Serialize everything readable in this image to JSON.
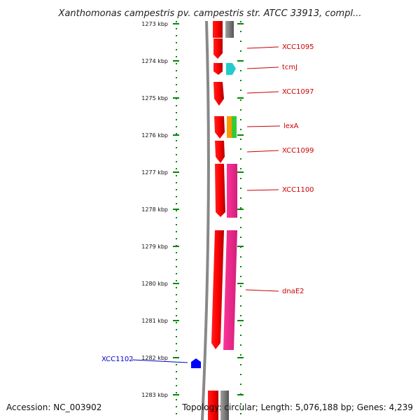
{
  "title": "Xanthomonas campestris pv. campestris str. ATCC 33913, compl...",
  "footer": {
    "accession": "Accession: NC_003902",
    "topology": "Topology: circular; Length: 5,076,188 bp; Genes: 4,239"
  },
  "axis": {
    "unit": "kbp",
    "ticks": [
      "1273 kbp",
      "1274 kbp",
      "1275 kbp",
      "1276 kbp",
      "1277 kbp",
      "1278 kbp",
      "1279 kbp",
      "1280 kbp",
      "1281 kbp",
      "1282 kbp",
      "1283 kbp"
    ]
  },
  "colors": {
    "forward_gene": "#ff0000",
    "label_red": "#cc0000",
    "label_blue": "#0000cc",
    "tick_green": "#008800",
    "backbone": "#888888",
    "cyan": "#22cccc",
    "orange": "#ff9900",
    "green": "#33cc33",
    "magenta": "#ff3399",
    "gray": "#888888",
    "blue": "#0000ff"
  },
  "features": [
    {
      "name": "XCC1095",
      "label_color": "red"
    },
    {
      "name": "tcmJ",
      "label_color": "red"
    },
    {
      "name": "XCC1097",
      "label_color": "red"
    },
    {
      "name": "lexA",
      "label_color": "red"
    },
    {
      "name": "XCC1099",
      "label_color": "red"
    },
    {
      "name": "XCC1100",
      "label_color": "red"
    },
    {
      "name": "dnaE2",
      "label_color": "red"
    },
    {
      "name": "XCC1102",
      "label_color": "blue"
    }
  ]
}
